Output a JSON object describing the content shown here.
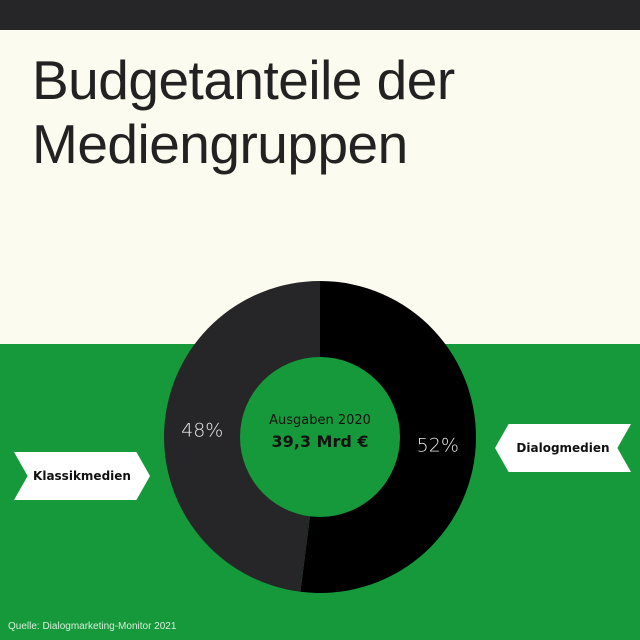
{
  "title_lines": [
    "Budgetanteile der",
    "Mediengruppen"
  ],
  "chart_data": {
    "type": "pie",
    "style": "donut",
    "slices": [
      {
        "label": "Dialogmedien",
        "value": 52,
        "value_label": "52%",
        "color": "#000000"
      },
      {
        "label": "Klassikmedien",
        "value": 48,
        "value_label": "48%",
        "color": "#262628"
      }
    ],
    "center_label": "Ausgaben 2020",
    "center_value": "39,3 Mrd €",
    "center_color": "#15993a"
  },
  "source": "Quelle: Dialogmarketing-Monitor 2021",
  "colors": {
    "background": "#fbfbf0",
    "band": "#15993a",
    "bar": "#262628",
    "title": "#222222"
  }
}
